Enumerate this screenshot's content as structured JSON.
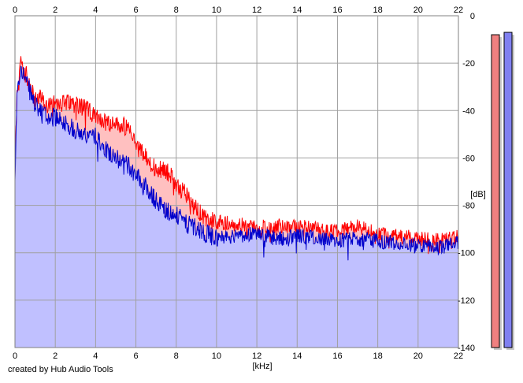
{
  "credit": "created by Hub Audio Tools",
  "colors": {
    "background": "#ffffff",
    "plot_fill": "#c0c0ff",
    "red_fill": "#ffc0c0",
    "red_line": "#ff0000",
    "blue_line": "#0000cc",
    "grid": "#a0a0a0",
    "meter_left": "#f08080",
    "meter_right": "#8080f0"
  },
  "chart_data": {
    "type": "area",
    "title": "",
    "xlabel": "[kHz]",
    "ylabel": "[dB]",
    "xlim": [
      0,
      22
    ],
    "ylim": [
      -140,
      0
    ],
    "x_ticks": [
      "0",
      "2",
      "4",
      "6",
      "8",
      "10",
      "12",
      "14",
      "16",
      "18",
      "20",
      "22"
    ],
    "y_ticks": [
      "0",
      "-20",
      "-40",
      "-60",
      "-80",
      "-100",
      "-120",
      "-140"
    ],
    "grid": true,
    "legend": "none",
    "series": [
      {
        "channel": "left",
        "color": "#ff0000",
        "x": [
          0,
          0.1,
          0.2,
          0.3,
          0.4,
          0.6,
          0.8,
          1.0,
          1.2,
          1.5,
          2.0,
          2.5,
          3.0,
          3.5,
          4.0,
          4.5,
          5.0,
          5.5,
          6.0,
          6.5,
          7.0,
          7.5,
          8.0,
          8.5,
          9.0,
          9.5,
          10.0,
          11.0,
          12.0,
          13.0,
          14.0,
          15.0,
          16.0,
          17.0,
          18.0,
          19.0,
          20.0,
          21.0,
          22.0
        ],
        "values": [
          -65,
          -33,
          -27,
          -18,
          -22,
          -26,
          -31,
          -36,
          -34,
          -38,
          -36,
          -37,
          -37,
          -39,
          -43,
          -45,
          -46,
          -47,
          -54,
          -60,
          -65,
          -65,
          -71,
          -75,
          -82,
          -86,
          -87,
          -88,
          -89,
          -89,
          -89,
          -90,
          -91,
          -89,
          -92,
          -93,
          -94,
          -95,
          -93
        ]
      },
      {
        "channel": "right",
        "color": "#0000cc",
        "x": [
          0,
          0.1,
          0.2,
          0.3,
          0.4,
          0.6,
          0.8,
          1.0,
          1.2,
          1.5,
          2.0,
          2.5,
          3.0,
          3.5,
          4.0,
          4.5,
          5.0,
          5.5,
          6.0,
          6.5,
          7.0,
          7.5,
          8.0,
          8.5,
          9.0,
          9.5,
          10.0,
          11.0,
          12.0,
          13.0,
          14.0,
          15.0,
          16.0,
          17.0,
          18.0,
          19.0,
          20.0,
          21.0,
          22.0
        ],
        "values": [
          -68,
          -35,
          -28,
          -20,
          -24,
          -29,
          -33,
          -38,
          -40,
          -42,
          -43,
          -45,
          -48,
          -50,
          -51,
          -56,
          -60,
          -62,
          -67,
          -72,
          -78,
          -82,
          -84,
          -88,
          -89,
          -92,
          -94,
          -93,
          -92,
          -94,
          -93,
          -94,
          -95,
          -94,
          -95,
          -96,
          -97,
          -98,
          -96
        ]
      }
    ],
    "level_meters": [
      {
        "channel": "left",
        "color": "#f08080",
        "value": -8
      },
      {
        "channel": "right",
        "color": "#8080f0",
        "value": -7
      }
    ]
  }
}
